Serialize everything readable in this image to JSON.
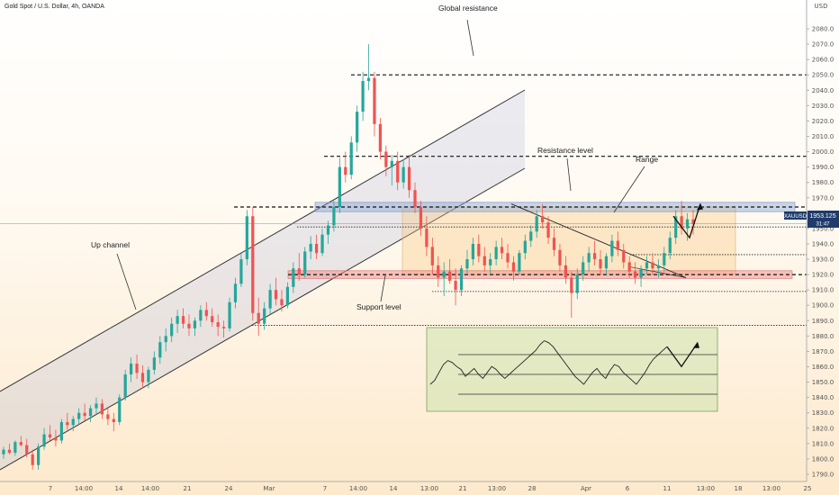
{
  "chart_data": {
    "type": "candlestick",
    "symbol_title": "Gold Spot / U.S. Dollar, 4h, OANDA",
    "currency": "USD",
    "price_axis": {
      "range": [
        1785,
        2088
      ],
      "ticks": [
        1790,
        1800,
        1810,
        1820,
        1830,
        1840,
        1850,
        1860,
        1870,
        1880,
        1890,
        1900,
        1910,
        1920,
        1930,
        1940,
        1950,
        1960,
        1970,
        1980,
        1990,
        2000,
        2010,
        2020,
        2030,
        2040,
        2050,
        2060,
        2070,
        2080
      ]
    },
    "time_axis": {
      "labels": [
        "7",
        "14:00",
        "14",
        "14:00",
        "21",
        "24",
        "Mar",
        "7",
        "14:00",
        "14",
        "13:00",
        "21",
        "13:00",
        "28",
        "Apr",
        "6",
        "11",
        "13:00",
        "18",
        "13:00",
        "25"
      ]
    },
    "last_price": {
      "ticker": "XAUUSD",
      "price": "1953.125",
      "countdown": "31:47",
      "value": 1953.125
    },
    "levels": {
      "global_resistance": 2050,
      "dashed_2000": 1997,
      "range_top": 1964,
      "range_bottom": 1920,
      "dotted_levels": [
        1951,
        1933,
        1909,
        1887
      ]
    },
    "annotations": {
      "global_resistance": "Global resistance",
      "resistance_level": "Resistance level",
      "range": "Range",
      "support_level": "Support level",
      "up_channel": "Up channel"
    },
    "candles": [
      [
        1803,
        1808,
        1800,
        1806
      ],
      [
        1806,
        1810,
        1803,
        1804
      ],
      [
        1804,
        1812,
        1802,
        1811
      ],
      [
        1811,
        1815,
        1808,
        1809
      ],
      [
        1809,
        1813,
        1801,
        1803
      ],
      [
        1803,
        1806,
        1793,
        1796
      ],
      [
        1796,
        1810,
        1793,
        1808
      ],
      [
        1808,
        1820,
        1806,
        1816
      ],
      [
        1816,
        1822,
        1812,
        1814
      ],
      [
        1814,
        1819,
        1808,
        1812
      ],
      [
        1812,
        1826,
        1810,
        1824
      ],
      [
        1824,
        1830,
        1819,
        1822
      ],
      [
        1822,
        1828,
        1818,
        1826
      ],
      [
        1826,
        1833,
        1822,
        1830
      ],
      [
        1830,
        1836,
        1825,
        1828
      ],
      [
        1828,
        1835,
        1824,
        1833
      ],
      [
        1833,
        1840,
        1829,
        1836
      ],
      [
        1836,
        1839,
        1826,
        1829
      ],
      [
        1829,
        1834,
        1822,
        1826
      ],
      [
        1826,
        1830,
        1818,
        1824
      ],
      [
        1824,
        1842,
        1822,
        1840
      ],
      [
        1840,
        1858,
        1838,
        1855
      ],
      [
        1855,
        1866,
        1850,
        1862
      ],
      [
        1862,
        1868,
        1852,
        1856
      ],
      [
        1856,
        1861,
        1846,
        1850
      ],
      [
        1850,
        1860,
        1846,
        1858
      ],
      [
        1858,
        1870,
        1855,
        1866
      ],
      [
        1866,
        1880,
        1862,
        1876
      ],
      [
        1876,
        1885,
        1870,
        1880
      ],
      [
        1880,
        1892,
        1876,
        1888
      ],
      [
        1888,
        1897,
        1882,
        1893
      ],
      [
        1893,
        1898,
        1885,
        1888
      ],
      [
        1888,
        1894,
        1880,
        1885
      ],
      [
        1885,
        1892,
        1880,
        1890
      ],
      [
        1890,
        1900,
        1886,
        1897
      ],
      [
        1897,
        1902,
        1890,
        1893
      ],
      [
        1893,
        1898,
        1886,
        1889
      ],
      [
        1889,
        1894,
        1880,
        1886
      ],
      [
        1886,
        1890,
        1879,
        1885
      ],
      [
        1885,
        1905,
        1883,
        1902
      ],
      [
        1902,
        1918,
        1898,
        1914
      ],
      [
        1914,
        1934,
        1912,
        1930
      ],
      [
        1930,
        1962,
        1926,
        1958
      ],
      [
        1958,
        1964,
        1890,
        1895
      ],
      [
        1895,
        1905,
        1880,
        1888
      ],
      [
        1888,
        1902,
        1884,
        1898
      ],
      [
        1898,
        1914,
        1894,
        1910
      ],
      [
        1910,
        1918,
        1900,
        1904
      ],
      [
        1904,
        1910,
        1896,
        1900
      ],
      [
        1900,
        1915,
        1898,
        1912
      ],
      [
        1912,
        1928,
        1908,
        1924
      ],
      [
        1924,
        1934,
        1916,
        1920
      ],
      [
        1920,
        1938,
        1918,
        1935
      ],
      [
        1935,
        1945,
        1930,
        1940
      ],
      [
        1940,
        1946,
        1930,
        1934
      ],
      [
        1934,
        1950,
        1932,
        1946
      ],
      [
        1946,
        1955,
        1940,
        1952
      ],
      [
        1952,
        1968,
        1948,
        1964
      ],
      [
        1964,
        1996,
        1960,
        1990
      ],
      [
        1990,
        2000,
        1980,
        1985
      ],
      [
        1985,
        2010,
        1982,
        2006
      ],
      [
        2006,
        2030,
        2000,
        2026
      ],
      [
        2026,
        2052,
        2020,
        2046
      ],
      [
        2046,
        2070,
        2040,
        2048
      ],
      [
        2048,
        2052,
        2010,
        2018
      ],
      [
        2018,
        2022,
        1995,
        2000
      ],
      [
        2000,
        2004,
        1984,
        1990
      ],
      [
        1990,
        1998,
        1978,
        1994
      ],
      [
        1994,
        2000,
        1975,
        1980
      ],
      [
        1980,
        1995,
        1976,
        1990
      ],
      [
        1990,
        1998,
        1970,
        1975
      ],
      [
        1975,
        1980,
        1960,
        1964
      ],
      [
        1964,
        1968,
        1945,
        1950
      ],
      [
        1950,
        1958,
        1932,
        1938
      ],
      [
        1938,
        1944,
        1920,
        1926
      ],
      [
        1926,
        1932,
        1912,
        1918
      ],
      [
        1918,
        1928,
        1906,
        1922
      ],
      [
        1922,
        1930,
        1914,
        1916
      ],
      [
        1916,
        1924,
        1900,
        1910
      ],
      [
        1910,
        1926,
        1906,
        1924
      ],
      [
        1924,
        1936,
        1920,
        1930
      ],
      [
        1930,
        1944,
        1926,
        1940
      ],
      [
        1940,
        1946,
        1928,
        1932
      ],
      [
        1932,
        1938,
        1922,
        1926
      ],
      [
        1926,
        1934,
        1920,
        1930
      ],
      [
        1930,
        1942,
        1926,
        1938
      ],
      [
        1938,
        1944,
        1930,
        1934
      ],
      [
        1934,
        1940,
        1924,
        1928
      ],
      [
        1928,
        1932,
        1916,
        1922
      ],
      [
        1922,
        1936,
        1920,
        1934
      ],
      [
        1934,
        1946,
        1930,
        1942
      ],
      [
        1942,
        1952,
        1938,
        1948
      ],
      [
        1948,
        1962,
        1944,
        1958
      ],
      [
        1958,
        1966,
        1950,
        1954
      ],
      [
        1954,
        1958,
        1940,
        1944
      ],
      [
        1944,
        1950,
        1932,
        1936
      ],
      [
        1936,
        1940,
        1922,
        1926
      ],
      [
        1926,
        1932,
        1914,
        1918
      ],
      [
        1918,
        1922,
        1892,
        1908
      ],
      [
        1908,
        1924,
        1904,
        1920
      ],
      [
        1920,
        1932,
        1916,
        1928
      ],
      [
        1928,
        1938,
        1922,
        1934
      ],
      [
        1934,
        1942,
        1926,
        1930
      ],
      [
        1930,
        1936,
        1920,
        1924
      ],
      [
        1924,
        1934,
        1920,
        1932
      ],
      [
        1932,
        1946,
        1928,
        1942
      ],
      [
        1942,
        1948,
        1932,
        1936
      ],
      [
        1936,
        1940,
        1924,
        1928
      ],
      [
        1928,
        1932,
        1918,
        1922
      ],
      [
        1922,
        1928,
        1914,
        1918
      ],
      [
        1918,
        1926,
        1912,
        1924
      ],
      [
        1924,
        1932,
        1920,
        1928
      ],
      [
        1928,
        1934,
        1920,
        1924
      ],
      [
        1924,
        1930,
        1918,
        1926
      ],
      [
        1926,
        1938,
        1922,
        1934
      ],
      [
        1934,
        1948,
        1930,
        1944
      ],
      [
        1944,
        1962,
        1940,
        1958
      ],
      [
        1958,
        1968,
        1946,
        1950
      ],
      [
        1950,
        1960,
        1942,
        1956
      ],
      [
        1956,
        1962,
        1946,
        1953
      ]
    ],
    "rsi_box": {
      "guides": [
        70,
        50,
        30
      ],
      "values": [
        40,
        44,
        52,
        60,
        64,
        62,
        58,
        55,
        48,
        52,
        56,
        50,
        46,
        52,
        58,
        55,
        50,
        46,
        50,
        54,
        58,
        62,
        66,
        70,
        74,
        80,
        84,
        82,
        78,
        72,
        66,
        60,
        54,
        48,
        44,
        40,
        46,
        52,
        56,
        50,
        46,
        54,
        60,
        58,
        52,
        48,
        44,
        40,
        46,
        52,
        60,
        66,
        70,
        74,
        78
      ]
    }
  }
}
